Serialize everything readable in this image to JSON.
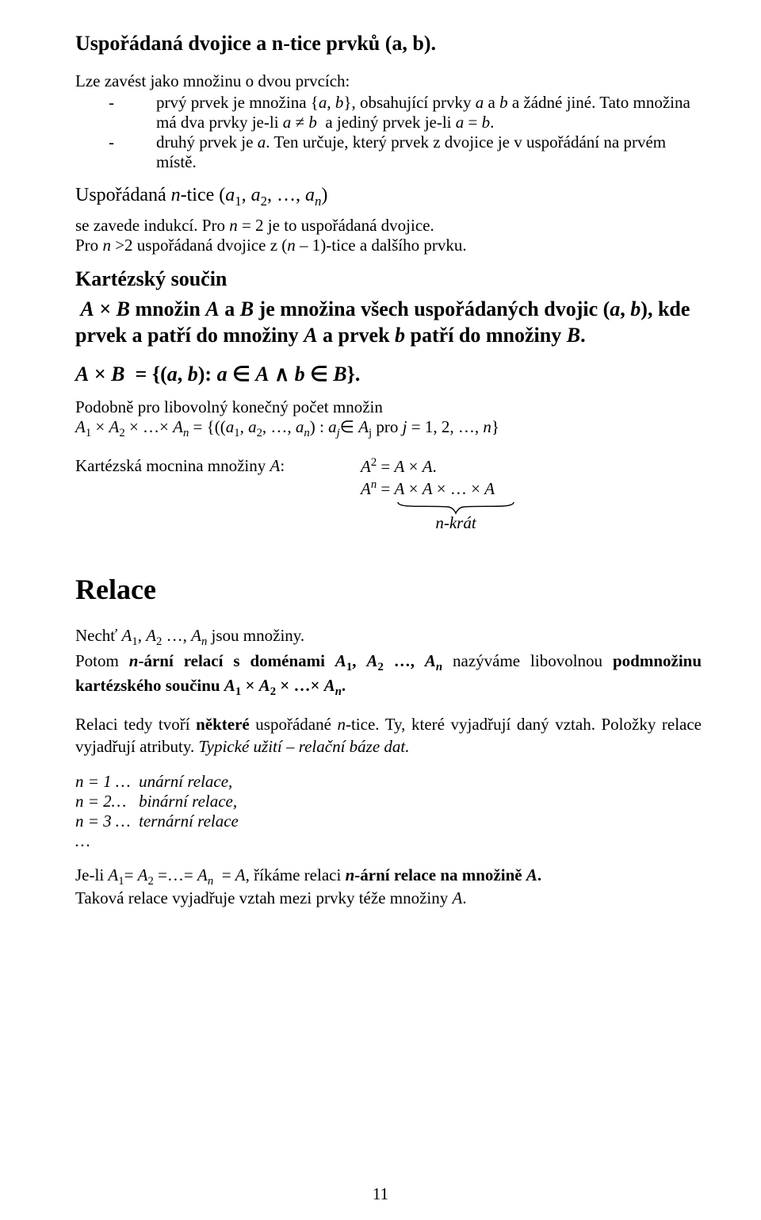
{
  "title": "Uspořádaná dvojice a n-tice prvků (a, b).",
  "intro": "Lze zavést jako množinu o dvou prvcích:",
  "bullet1_html": "prvý prvek je množina {<i>a</i>, <i>b</i>}, obsahující prvky <i>a</i> a <i>b</i> a žádné jiné. Tato množina má dva prvky je-li <i>a</i> ≠ <i>b</i>&nbsp; a jediný prvek je-li <i>a</i> = <i>b</i>.",
  "bullet2_html": "druhý prvek je <i>a</i>. Ten určuje, který prvek z dvojice je v uspořádání na prvém místě.",
  "ntice_head_html": "Uspořádaná <i>n</i>-tice (<i>a</i><sub>1</sub>, <i>a</i><sub>2</sub>, …, <i>a<sub>n</sub></i>)",
  "ntice_p1_html": "se zavede indukcí. Pro <i>n</i> = 2 je to uspořádaná dvojice.",
  "ntice_p2_html": "Pro <i>n</i> &gt;2 uspořádaná dvojice z (<i>n</i> – 1)-tice a dalšího prvku.",
  "kart_head": "Kartézský součin",
  "kart_body_html": "&nbsp;<i>A</i> × <i>B</i> množin <i>A</i> a <i>B</i> je množina všech uspořádaných dvojic (<i>a</i>, <i>b</i>), kde prvek a patří do množiny <i>A</i> a prvek <i>b</i> patří do množiny <i>B</i>.",
  "ab_def_html": "<i>A</i> × <i>B</i>&nbsp; = {(<i>a</i>, <i>b</i>): <i>a</i> ∈ <i>A</i> ∧ <i>b</i> ∈ <i>B</i>}.",
  "podobne_html": "Podobně pro libovolný konečný počet množin",
  "gen_prod_html": "<i>A</i><sub>1</sub> × <i>A</i><sub>2</sub> × …× <i>A<sub>n</sub></i> = {((<i>a</i><sub>1</sub>, <i>a</i><sub>2</sub>, …, <i>a<sub>n</sub></i>) : <i>a<sub>j</sub></i>∈ <i>A</i><sub>j</sub> pro <i>j</i> = 1, 2, …, <i>n</i>}",
  "mocnina_label_html": "Kartézská mocnina množiny <i>A</i>:",
  "a2_html": "<i>A</i><sup>2</sup> = <i>A</i> × <i>A</i>.",
  "an_html": "<i>A<sup>n</sup></i> = <i>A</i> × <i>A</i> × … × <i>A</i>",
  "nkrat_html": "<i>n</i>-krát",
  "relace_title": "Relace",
  "relace_p1_html": "Nechť <i>A</i><sub>1</sub>, <i>A</i><sub>2</sub> …, <i>A<sub>n</sub></i> jsou množiny.",
  "relace_p2_html": "Potom <b><i>n</i>-ární relací s&nbsp;doménami <i>A</i><sub>1</sub>, <i>A</i><sub>2</sub> …, <i>A<sub>n</sub></i></b> nazýváme libovolnou <b>podmnožinu kartézského součinu <i>A</i><sub>1</sub> × <i>A</i><sub>2</sub> × …× <i>A<sub>n</sub></i>.</b>",
  "relace_tedy_html": "Relaci tedy tvoří <b>některé</b> uspořádané <i>n</i>-tice. Ty, které vyjadřují daný vztah. Položky relace vyjadřují atributy. <i>Typické užití – relační báze dat.</i>",
  "enum1_html": "n = 1 …&nbsp; unární relace,",
  "enum2_html": "n = 2…&nbsp;&nbsp; binární relace,",
  "enum3_html": "n = 3 …&nbsp; ternární relace",
  "enum4_html": "…",
  "jeli_html": "Je-li <i>A</i><sub>1</sub>= <i>A</i><sub>2</sub> =…= <i>A<sub>n</sub></i>&nbsp; = <i>A</i>, říkáme relaci <b><i>n</i>-ární relace na množině <i>A</i>.</b>",
  "takova_html": "Taková relace vyjadřuje vztah mezi prvky téže množiny <i>A</i>.",
  "page_number": "11"
}
